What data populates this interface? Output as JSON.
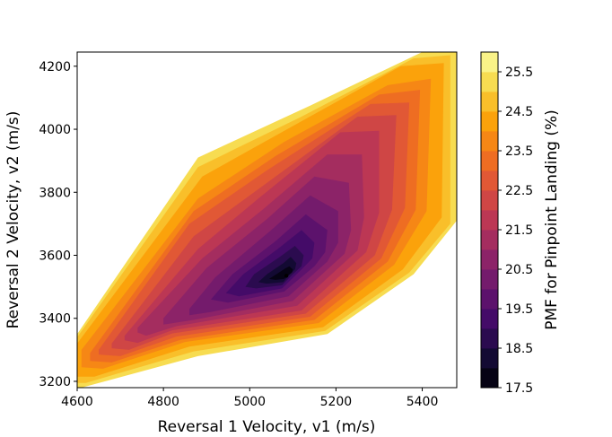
{
  "chart_data": {
    "type": "contour",
    "title": "",
    "xlabel": "Reversal 1 Velocity, v1  (m/s)",
    "ylabel": "Reversal 2 Velocity, v2  (m/s)",
    "xlim": [
      4600,
      5480
    ],
    "ylim": [
      3180,
      4245
    ],
    "x_ticks": [
      4600,
      4800,
      5000,
      5200,
      5400
    ],
    "y_ticks": [
      3200,
      3400,
      3600,
      3800,
      4000,
      4200
    ],
    "colorbar": {
      "label": "PMF for Pinpoint Landing (%)",
      "range": [
        17.5,
        26.0
      ],
      "ticks": [
        17.5,
        18.5,
        19.5,
        20.5,
        21.5,
        22.5,
        23.5,
        24.5,
        25.5
      ],
      "colormap": "inferno"
    },
    "minimum": {
      "x": 5085,
      "y": 3535,
      "value": 17.5
    },
    "level_step": 0.5,
    "contour_levels": [
      {
        "value": 25.25,
        "points": [
          [
            4600,
            3350
          ],
          [
            4880,
            3910
          ],
          [
            5140,
            4075
          ],
          [
            5400,
            4245
          ],
          [
            5480,
            4245
          ],
          [
            5480,
            3710
          ],
          [
            5380,
            3540
          ],
          [
            5180,
            3350
          ],
          [
            4880,
            3280
          ],
          [
            4610,
            3180
          ],
          [
            4600,
            3180
          ]
        ]
      },
      {
        "value": 24.75,
        "points": [
          [
            4600,
            3340
          ],
          [
            4880,
            3880
          ],
          [
            5120,
            4040
          ],
          [
            5380,
            4225
          ],
          [
            5465,
            4235
          ],
          [
            5465,
            3700
          ],
          [
            5370,
            3545
          ],
          [
            5175,
            3360
          ],
          [
            4870,
            3295
          ],
          [
            4620,
            3195
          ],
          [
            4600,
            3195
          ]
        ]
      },
      {
        "value": 24.25,
        "points": [
          [
            4600,
            3320
          ],
          [
            4890,
            3850
          ],
          [
            5100,
            4010
          ],
          [
            5350,
            4200
          ],
          [
            5450,
            4210
          ],
          [
            5445,
            3720
          ],
          [
            5355,
            3555
          ],
          [
            5170,
            3372
          ],
          [
            4860,
            3310
          ],
          [
            4640,
            3215
          ],
          [
            4600,
            3215
          ]
        ]
      },
      {
        "value": 23.75,
        "points": [
          [
            4610,
            3300
          ],
          [
            4880,
            3780
          ],
          [
            5080,
            3960
          ],
          [
            5320,
            4140
          ],
          [
            5420,
            4160
          ],
          [
            5410,
            3740
          ],
          [
            5335,
            3570
          ],
          [
            5160,
            3385
          ],
          [
            4850,
            3325
          ],
          [
            4660,
            3240
          ],
          [
            4610,
            3245
          ]
        ]
      },
      {
        "value": 23.25,
        "points": [
          [
            4630,
            3290
          ],
          [
            4870,
            3740
          ],
          [
            5060,
            3915
          ],
          [
            5300,
            4110
          ],
          [
            5395,
            4125
          ],
          [
            5385,
            3745
          ],
          [
            5320,
            3580
          ],
          [
            5150,
            3395
          ],
          [
            4840,
            3332
          ],
          [
            4680,
            3260
          ],
          [
            4630,
            3265
          ]
        ]
      },
      {
        "value": 22.75,
        "points": [
          [
            4650,
            3300
          ],
          [
            4860,
            3700
          ],
          [
            5040,
            3870
          ],
          [
            5280,
            4080
          ],
          [
            5370,
            4085
          ],
          [
            5360,
            3750
          ],
          [
            5305,
            3590
          ],
          [
            5140,
            3405
          ],
          [
            4830,
            3342
          ],
          [
            4700,
            3280
          ],
          [
            4650,
            3285
          ]
        ]
      },
      {
        "value": 22.25,
        "points": [
          [
            4680,
            3320
          ],
          [
            4870,
            3660
          ],
          [
            5030,
            3820
          ],
          [
            5250,
            4040
          ],
          [
            5340,
            4045
          ],
          [
            5330,
            3745
          ],
          [
            5290,
            3600
          ],
          [
            5130,
            3415
          ],
          [
            4820,
            3352
          ],
          [
            4720,
            3300
          ],
          [
            4680,
            3305
          ]
        ]
      },
      {
        "value": 21.75,
        "points": [
          [
            4710,
            3345
          ],
          [
            4880,
            3620
          ],
          [
            5020,
            3780
          ],
          [
            5210,
            3990
          ],
          [
            5300,
            3995
          ],
          [
            5300,
            3735
          ],
          [
            5270,
            3610
          ],
          [
            5120,
            3425
          ],
          [
            4820,
            3362
          ],
          [
            4740,
            3322
          ],
          [
            4710,
            3330
          ]
        ]
      },
      {
        "value": 21.25,
        "points": [
          [
            4740,
            3370
          ],
          [
            4890,
            3590
          ],
          [
            5030,
            3745
          ],
          [
            5180,
            3920
          ],
          [
            5260,
            3920
          ],
          [
            5265,
            3720
          ],
          [
            5250,
            3615
          ],
          [
            5110,
            3440
          ],
          [
            4830,
            3375
          ],
          [
            4760,
            3345
          ],
          [
            4740,
            3355
          ]
        ]
      },
      {
        "value": 20.75,
        "points": [
          [
            4800,
            3400
          ],
          [
            4900,
            3560
          ],
          [
            5040,
            3715
          ],
          [
            5150,
            3850
          ],
          [
            5230,
            3830
          ],
          [
            5235,
            3680
          ],
          [
            5220,
            3605
          ],
          [
            5100,
            3455
          ],
          [
            4870,
            3395
          ],
          [
            4800,
            3380
          ]
        ]
      },
      {
        "value": 20.25,
        "points": [
          [
            4860,
            3430
          ],
          [
            4920,
            3530
          ],
          [
            5050,
            3680
          ],
          [
            5140,
            3790
          ],
          [
            5205,
            3740
          ],
          [
            5205,
            3640
          ],
          [
            5180,
            3580
          ],
          [
            5090,
            3470
          ],
          [
            4910,
            3420
          ],
          [
            4860,
            3410
          ]
        ]
      },
      {
        "value": 19.75,
        "points": [
          [
            4910,
            3460
          ],
          [
            4960,
            3540
          ],
          [
            5060,
            3645
          ],
          [
            5130,
            3730
          ],
          [
            5180,
            3680
          ],
          [
            5175,
            3610
          ],
          [
            5150,
            3565
          ],
          [
            5080,
            3485
          ],
          [
            4950,
            3450
          ]
        ]
      },
      {
        "value": 19.25,
        "points": [
          [
            4945,
            3480
          ],
          [
            4985,
            3540
          ],
          [
            5065,
            3620
          ],
          [
            5120,
            3680
          ],
          [
            5150,
            3640
          ],
          [
            5145,
            3590
          ],
          [
            5120,
            3555
          ],
          [
            5075,
            3495
          ],
          [
            4975,
            3470
          ]
        ]
      },
      {
        "value": 18.75,
        "points": [
          [
            4990,
            3500
          ],
          [
            5010,
            3540
          ],
          [
            5070,
            3595
          ],
          [
            5105,
            3630
          ],
          [
            5125,
            3600
          ],
          [
            5120,
            3565
          ],
          [
            5100,
            3540
          ],
          [
            5075,
            3505
          ],
          [
            5015,
            3495
          ]
        ]
      },
      {
        "value": 18.25,
        "points": [
          [
            5020,
            3515
          ],
          [
            5040,
            3540
          ],
          [
            5078,
            3575
          ],
          [
            5095,
            3595
          ],
          [
            5108,
            3575
          ],
          [
            5105,
            3555
          ],
          [
            5090,
            3535
          ],
          [
            5078,
            3515
          ],
          [
            5040,
            3510
          ]
        ]
      },
      {
        "value": 17.75,
        "points": [
          [
            5045,
            3525
          ],
          [
            5060,
            3538
          ],
          [
            5082,
            3558
          ],
          [
            5092,
            3565
          ],
          [
            5100,
            3555
          ],
          [
            5098,
            3545
          ],
          [
            5088,
            3535
          ],
          [
            5080,
            3525
          ],
          [
            5060,
            3522
          ]
        ]
      }
    ]
  }
}
